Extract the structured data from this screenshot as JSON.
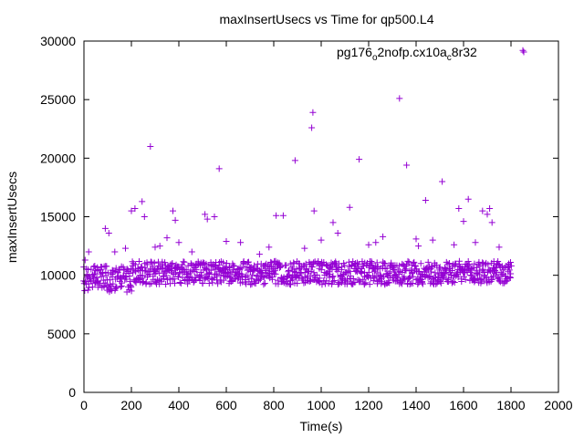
{
  "chart_data": {
    "type": "scatter",
    "title": "maxInsertUsecs vs Time for qp500.L4",
    "xlabel": "Time(s)",
    "ylabel": "maxInsertUsecs",
    "xlim": [
      0,
      2000
    ],
    "ylim": [
      0,
      30000
    ],
    "xticks": [
      0,
      200,
      400,
      600,
      800,
      1000,
      1200,
      1400,
      1600,
      1800,
      2000
    ],
    "yticks": [
      0,
      5000,
      10000,
      15000,
      20000,
      25000,
      30000
    ],
    "xtick_labels": [
      "0",
      "200",
      "400",
      "600",
      "800",
      "1000",
      "1200",
      "1400",
      "1600",
      "1800",
      "2000"
    ],
    "ytick_labels": [
      "0",
      "5000",
      "10000",
      "15000",
      "20000",
      "25000",
      "30000"
    ],
    "grid": false,
    "legend_position": "top-right",
    "legend": {
      "prefix": "pg176",
      "sub1": "o",
      "mid": "2nofp.cx10a",
      "sub2": "c",
      "suffix": "8r32"
    },
    "marker": "+",
    "series": [
      {
        "name": "pg176_o2nofp.cx10a_c8r32",
        "color": "#9400d3",
        "baseline": {
          "x_start": 0,
          "x_end": 1800,
          "step": 5,
          "segments": [
            {
              "x_end": 200,
              "typical_low": 8500,
              "typical_high": 10800
            },
            {
              "x_end": 1800,
              "typical_low": 9200,
              "typical_high": 11200
            }
          ]
        },
        "points": [
          [
            5,
            11300
          ],
          [
            20,
            12000
          ],
          [
            90,
            14000
          ],
          [
            105,
            13600
          ],
          [
            130,
            12000
          ],
          [
            175,
            12300
          ],
          [
            200,
            15500
          ],
          [
            215,
            15700
          ],
          [
            245,
            16300
          ],
          [
            255,
            15000
          ],
          [
            280,
            21000
          ],
          [
            320,
            12500
          ],
          [
            350,
            13200
          ],
          [
            375,
            15500
          ],
          [
            385,
            14700
          ],
          [
            400,
            12800
          ],
          [
            510,
            15200
          ],
          [
            520,
            14800
          ],
          [
            550,
            15000
          ],
          [
            570,
            19100
          ],
          [
            660,
            12800
          ],
          [
            780,
            12400
          ],
          [
            810,
            15100
          ],
          [
            840,
            15100
          ],
          [
            890,
            19800
          ],
          [
            960,
            22600
          ],
          [
            965,
            23900
          ],
          [
            970,
            15500
          ],
          [
            1050,
            14500
          ],
          [
            1070,
            13600
          ],
          [
            1120,
            15800
          ],
          [
            1160,
            19900
          ],
          [
            1200,
            12600
          ],
          [
            1260,
            13300
          ],
          [
            1330,
            25100
          ],
          [
            1360,
            19400
          ],
          [
            1400,
            13100
          ],
          [
            1440,
            16400
          ],
          [
            1510,
            18000
          ],
          [
            1580,
            15700
          ],
          [
            1600,
            14600
          ],
          [
            1620,
            16500
          ],
          [
            1680,
            15500
          ],
          [
            1700,
            15200
          ],
          [
            1710,
            15700
          ],
          [
            1720,
            14500
          ],
          [
            1850,
            29200
          ],
          [
            1230,
            12800
          ],
          [
            1410,
            12500
          ],
          [
            1470,
            13000
          ],
          [
            1560,
            12600
          ],
          [
            1650,
            12800
          ],
          [
            1750,
            12400
          ],
          [
            930,
            12300
          ],
          [
            740,
            11800
          ],
          [
            455,
            12000
          ],
          [
            600,
            12900
          ],
          [
            1000,
            13000
          ],
          [
            300,
            12400
          ]
        ]
      }
    ]
  }
}
